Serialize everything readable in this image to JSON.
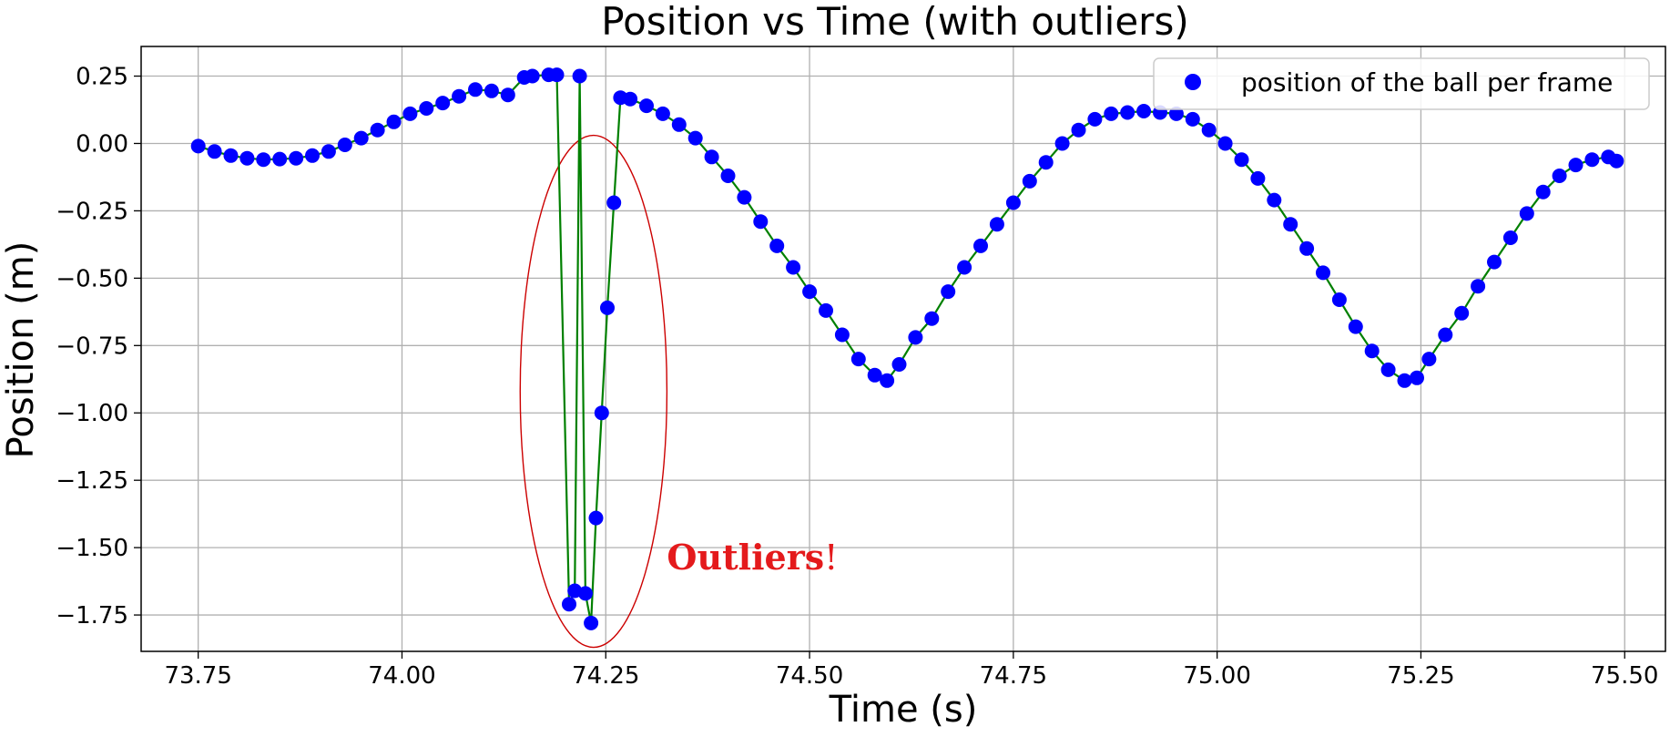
{
  "chart_data": {
    "type": "line",
    "title": "Position vs Time (with outliers)",
    "xlabel": "Time (s)",
    "ylabel": "Position (m)",
    "xlim": [
      73.68,
      75.55
    ],
    "ylim": [
      -1.885,
      0.36
    ],
    "xticks": [
      73.75,
      74.0,
      74.25,
      74.5,
      74.75,
      75.0,
      75.25,
      75.5
    ],
    "xtick_labels": [
      "73.75",
      "74.00",
      "74.25",
      "74.50",
      "74.75",
      "75.00",
      "75.25",
      "75.50"
    ],
    "yticks": [
      0.25,
      0.0,
      -0.25,
      -0.5,
      -0.75,
      -1.0,
      -1.25,
      -1.5,
      -1.75
    ],
    "ytick_labels": [
      "0.25",
      "0.00",
      "−0.25",
      "−0.50",
      "−0.75",
      "−1.00",
      "−1.25",
      "−1.50",
      "−1.75"
    ],
    "grid": true,
    "legend_position": "top-right",
    "line_color": "#008000",
    "marker_color": "#0000ff",
    "series": [
      {
        "name": "position of the ball per frame",
        "x": [
          73.75,
          73.77,
          73.79,
          73.81,
          73.83,
          73.85,
          73.87,
          73.89,
          73.91,
          73.93,
          73.95,
          73.97,
          73.99,
          74.01,
          74.03,
          74.05,
          74.07,
          74.09,
          74.11,
          74.13,
          74.15,
          74.16,
          74.18,
          74.19,
          74.205,
          74.212,
          74.218,
          74.225,
          74.232,
          74.238,
          74.245,
          74.252,
          74.26,
          74.268,
          74.28,
          74.3,
          74.32,
          74.34,
          74.36,
          74.38,
          74.4,
          74.42,
          74.44,
          74.46,
          74.48,
          74.5,
          74.52,
          74.54,
          74.56,
          74.58,
          74.595,
          74.61,
          74.63,
          74.65,
          74.67,
          74.69,
          74.71,
          74.73,
          74.75,
          74.77,
          74.79,
          74.81,
          74.83,
          74.85,
          74.87,
          74.89,
          74.91,
          74.93,
          74.95,
          74.97,
          74.99,
          75.01,
          75.03,
          75.05,
          75.07,
          75.09,
          75.11,
          75.13,
          75.15,
          75.17,
          75.19,
          75.21,
          75.23,
          75.245,
          75.26,
          75.28,
          75.3,
          75.32,
          75.34,
          75.36,
          75.38,
          75.4,
          75.42,
          75.44,
          75.46,
          75.48,
          75.49
        ],
        "y": [
          -0.01,
          -0.03,
          -0.045,
          -0.055,
          -0.06,
          -0.058,
          -0.055,
          -0.045,
          -0.03,
          -0.005,
          0.02,
          0.05,
          0.08,
          0.11,
          0.13,
          0.15,
          0.175,
          0.2,
          0.195,
          0.18,
          0.245,
          0.25,
          0.255,
          0.255,
          -1.71,
          -1.66,
          0.25,
          -1.67,
          -1.78,
          -1.39,
          -1.0,
          -0.61,
          -0.22,
          0.17,
          0.165,
          0.14,
          0.11,
          0.07,
          0.02,
          -0.05,
          -0.12,
          -0.2,
          -0.29,
          -0.38,
          -0.46,
          -0.55,
          -0.62,
          -0.71,
          -0.8,
          -0.86,
          -0.88,
          -0.82,
          -0.72,
          -0.65,
          -0.55,
          -0.46,
          -0.38,
          -0.3,
          -0.22,
          -0.14,
          -0.07,
          0.0,
          0.05,
          0.09,
          0.11,
          0.115,
          0.12,
          0.115,
          0.11,
          0.09,
          0.05,
          0.0,
          -0.06,
          -0.13,
          -0.21,
          -0.3,
          -0.39,
          -0.48,
          -0.58,
          -0.68,
          -0.77,
          -0.84,
          -0.88,
          -0.87,
          -0.8,
          -0.71,
          -0.63,
          -0.53,
          -0.44,
          -0.35,
          -0.26,
          -0.18,
          -0.12,
          -0.08,
          -0.06,
          -0.05,
          -0.065
        ]
      }
    ],
    "annotations": [
      {
        "text": "Outliers",
        "suffix": "!",
        "x": 74.43,
        "y": -1.58,
        "color": "#e41a1c"
      }
    ],
    "outlier_ellipse": {
      "cx": 74.235,
      "cy": -0.92,
      "rx": 0.09,
      "ry": 0.95,
      "color": "#cc0000"
    }
  }
}
